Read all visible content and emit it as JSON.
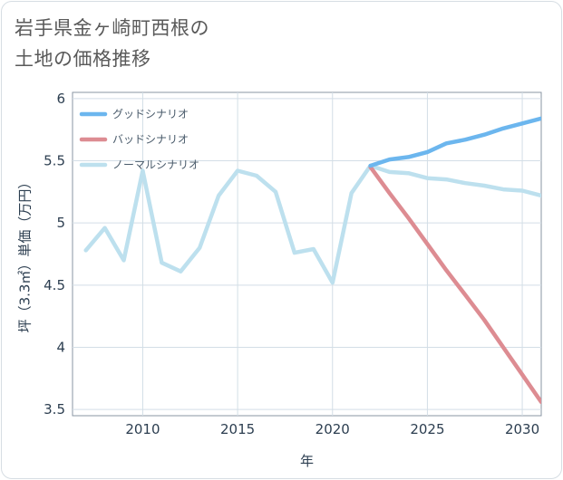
{
  "title_line1": "岩手県金ヶ崎町西根の",
  "title_line2": "土地の価格推移",
  "chart_data": {
    "type": "line",
    "xlabel": "年",
    "ylabel": "坪（3.3㎡）単価（万円）",
    "xlim": [
      2006.3,
      2031
    ],
    "ylim": [
      3.45,
      6.05
    ],
    "xticks": [
      2010,
      2015,
      2020,
      2025,
      2030
    ],
    "yticks": [
      3.5,
      4,
      4.5,
      5,
      5.5,
      6
    ],
    "ytick_labels": [
      "3.5",
      "4",
      "4.5",
      "5",
      "5.5",
      "6"
    ],
    "grid": true,
    "legend_position": "top-left",
    "series": [
      {
        "name": "グッドシナリオ",
        "color": "#6cb6ee",
        "x": [
          2022,
          2023,
          2024,
          2025,
          2026,
          2027,
          2028,
          2029,
          2030,
          2031
        ],
        "y": [
          5.46,
          5.51,
          5.53,
          5.57,
          5.64,
          5.67,
          5.71,
          5.76,
          5.8,
          5.84
        ]
      },
      {
        "name": "バッドシナリオ",
        "color": "#dd8c92",
        "x": [
          2022,
          2023,
          2024,
          2025,
          2026,
          2027,
          2028,
          2029,
          2030,
          2031
        ],
        "y": [
          5.45,
          5.24,
          5.04,
          4.83,
          4.62,
          4.42,
          4.22,
          4.0,
          3.78,
          3.56
        ]
      },
      {
        "name": "ノーマルシナリオ",
        "color": "#bde0ee",
        "x": [
          2007,
          2008,
          2009,
          2010,
          2011,
          2012,
          2013,
          2014,
          2015,
          2016,
          2017,
          2018,
          2019,
          2020,
          2021,
          2022,
          2023,
          2024,
          2025,
          2026,
          2027,
          2028,
          2029,
          2030,
          2031
        ],
        "y": [
          4.78,
          4.96,
          4.7,
          5.42,
          4.68,
          4.61,
          4.8,
          5.22,
          5.42,
          5.38,
          5.25,
          4.76,
          4.79,
          4.52,
          5.24,
          5.46,
          5.41,
          5.4,
          5.36,
          5.35,
          5.32,
          5.3,
          5.27,
          5.26,
          5.22
        ]
      }
    ]
  }
}
